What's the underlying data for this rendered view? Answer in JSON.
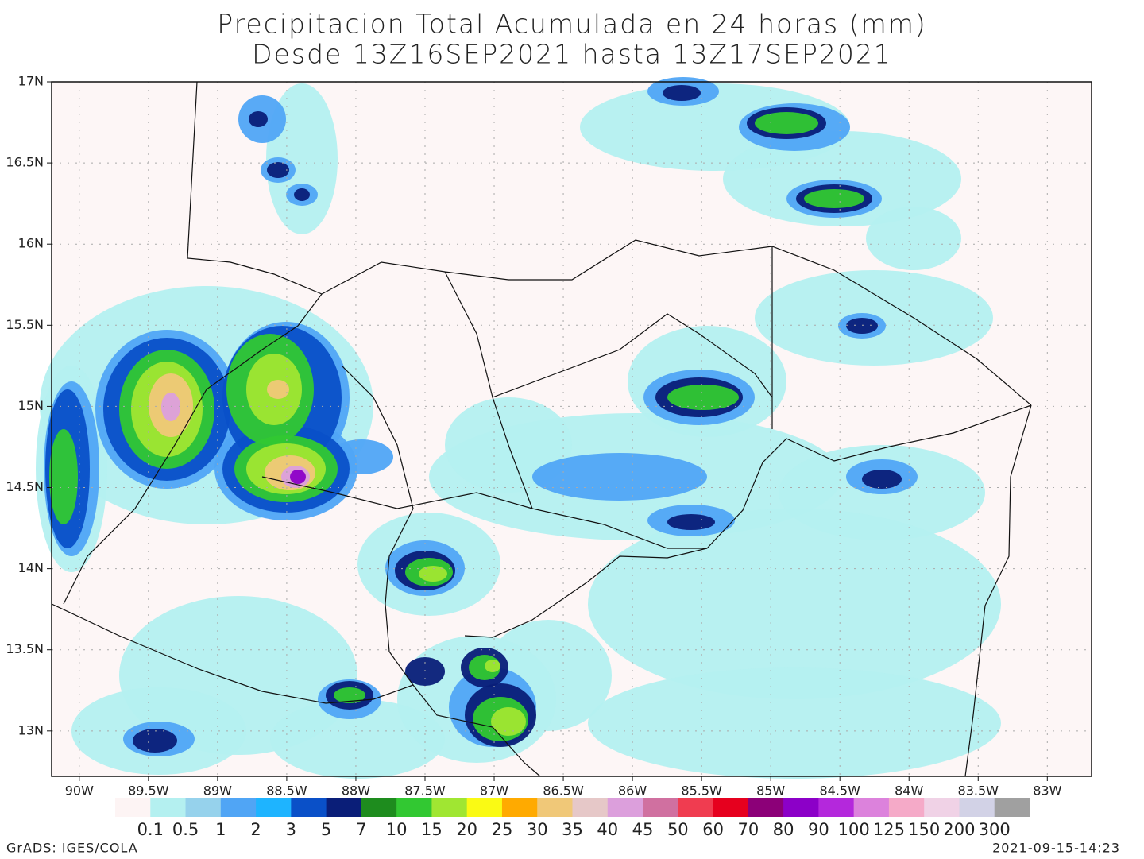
{
  "title": [
    "Precipitacion Total Acumulada en 24 horas (mm)",
    "Desde 13Z16SEP2021 hasta 13Z17SEP2021"
  ],
  "map": {
    "lon_range": [
      -90.2,
      -82.68
    ],
    "lat_range": [
      12.72,
      17
    ],
    "lat_ticks": [
      {
        "value": 17,
        "label": "17N"
      },
      {
        "value": 16.5,
        "label": "16.5N"
      },
      {
        "value": 16,
        "label": "16N"
      },
      {
        "value": 15.5,
        "label": "15.5N"
      },
      {
        "value": 15,
        "label": "15N"
      },
      {
        "value": 14.5,
        "label": "14.5N"
      },
      {
        "value": 14,
        "label": "14N"
      },
      {
        "value": 13.5,
        "label": "13.5N"
      },
      {
        "value": 13,
        "label": "13N"
      }
    ],
    "lon_ticks": [
      {
        "value": -90,
        "label": "90W"
      },
      {
        "value": -89.5,
        "label": "89.5W"
      },
      {
        "value": -89,
        "label": "89W"
      },
      {
        "value": -88.5,
        "label": "88.5W"
      },
      {
        "value": -88,
        "label": "88W"
      },
      {
        "value": -87.5,
        "label": "87.5W"
      },
      {
        "value": -87,
        "label": "87W"
      },
      {
        "value": -86.5,
        "label": "86.5W"
      },
      {
        "value": -86,
        "label": "86W"
      },
      {
        "value": -85.5,
        "label": "85.5W"
      },
      {
        "value": -85,
        "label": "85W"
      },
      {
        "value": -84.5,
        "label": "84.5W"
      },
      {
        "value": -84,
        "label": "84W"
      },
      {
        "value": -83.5,
        "label": "83.5W"
      },
      {
        "value": -83,
        "label": "83W"
      }
    ]
  },
  "legend": {
    "labels": [
      "0.1",
      "0.5",
      "1",
      "2",
      "3",
      "5",
      "7",
      "10",
      "15",
      "20",
      "25",
      "30",
      "35",
      "40",
      "45",
      "50",
      "60",
      "70",
      "80",
      "90",
      "100",
      "125",
      "150",
      "200",
      "300"
    ],
    "colors": [
      "#fdf4f4",
      "#b4f0f0",
      "#96d2ec",
      "#50a5f5",
      "#1eb4ff",
      "#0a50c8",
      "#0a1e78",
      "#1e8c1e",
      "#32c832",
      "#a0e632",
      "#fafa14",
      "#ffaa00",
      "#f0c878",
      "#e6c8c8",
      "#dc9fdc",
      "#d070a0",
      "#f03c50",
      "#e6001e",
      "#8c0078",
      "#8c00c8",
      "#b428dc",
      "#dc82dc",
      "#f5aac8",
      "#f0d2e6",
      "#d2d2e6",
      "#a0a0a0"
    ]
  },
  "footer": {
    "left": "GrADS: IGES/COLA",
    "right": "2021-09-15-14:23"
  }
}
